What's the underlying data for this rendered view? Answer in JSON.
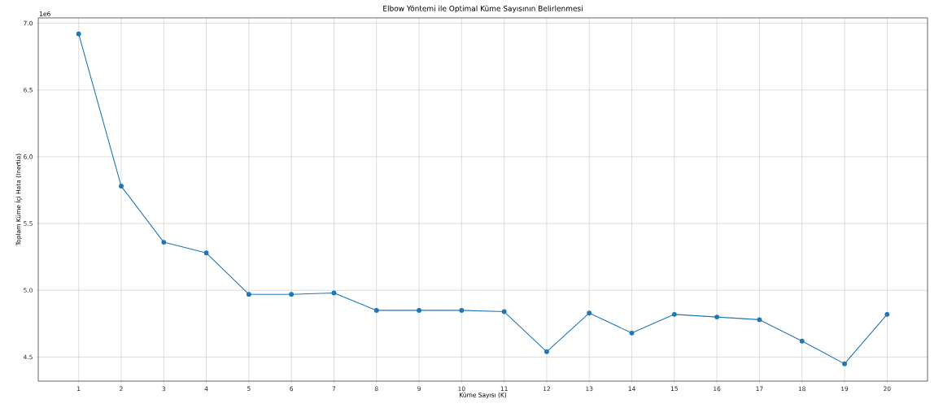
{
  "chart_data": {
    "type": "line",
    "title": "Elbow Yöntemi ile Optimal Küme Sayısının Belirlenmesi",
    "xlabel": "Küme Sayısı (K)",
    "ylabel": "Toplam Küme İçi Hata (Inertia)",
    "annotations": [
      "1e6"
    ],
    "x": [
      1,
      2,
      3,
      4,
      5,
      6,
      7,
      8,
      9,
      10,
      11,
      12,
      13,
      14,
      15,
      16,
      17,
      18,
      19,
      20
    ],
    "values": [
      6.92,
      5.78,
      5.36,
      5.28,
      4.97,
      4.97,
      4.98,
      4.85,
      4.85,
      4.85,
      4.84,
      4.54,
      4.83,
      4.68,
      4.82,
      4.8,
      4.78,
      4.62,
      4.45,
      4.82
    ],
    "color": "#1f77b4",
    "marker": "circle",
    "line_style": "solid",
    "grid": true,
    "xlim": [
      0.05,
      20.95
    ],
    "ylim": [
      4.32,
      7.04
    ],
    "xticks": [
      1,
      2,
      3,
      4,
      5,
      6,
      7,
      8,
      9,
      10,
      11,
      12,
      13,
      14,
      15,
      16,
      17,
      18,
      19,
      20
    ],
    "yticks": [
      {
        "value": 4.5,
        "label": "4.5"
      },
      {
        "value": 5.0,
        "label": "5.0"
      },
      {
        "value": 5.5,
        "label": "5.5"
      },
      {
        "value": 6.0,
        "label": "6.0"
      },
      {
        "value": 6.5,
        "label": "6.5"
      },
      {
        "value": 7.0,
        "label": "7.0"
      }
    ]
  }
}
